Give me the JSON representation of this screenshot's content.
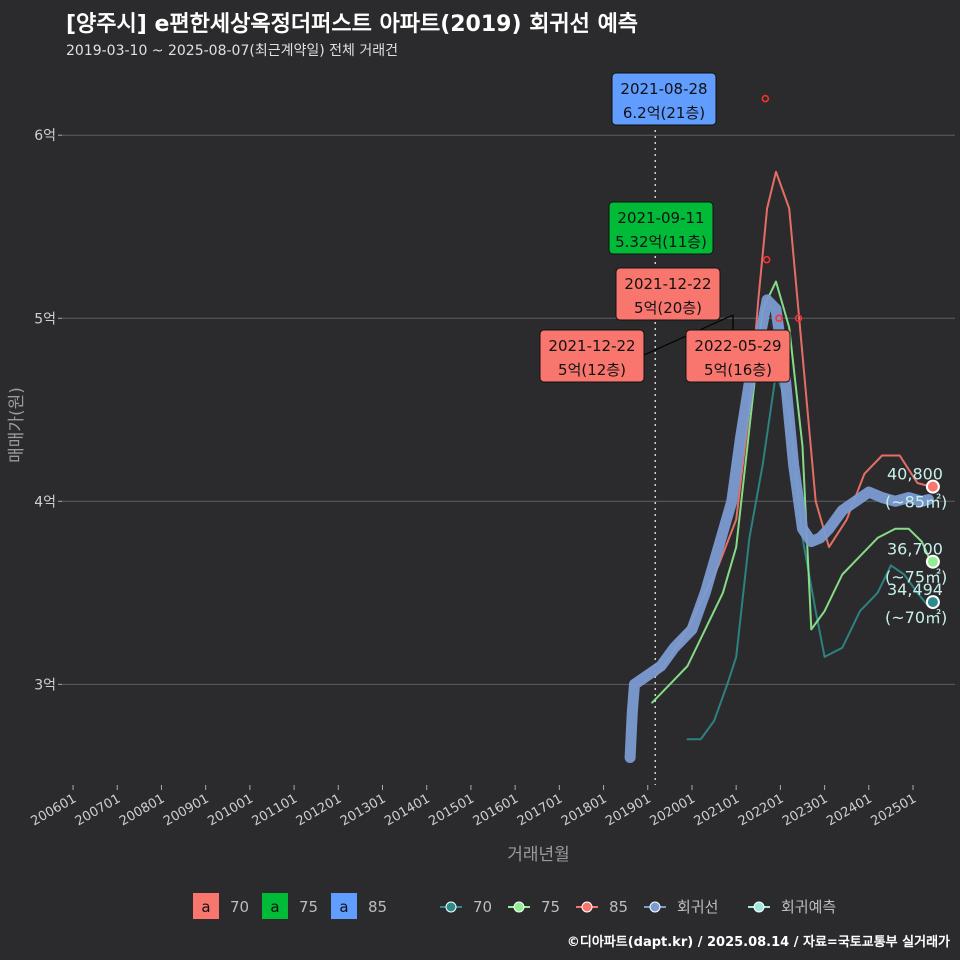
{
  "title": "[양주시] e편한세상옥정더퍼스트 아파트(2019) 회귀선 예측",
  "subtitle": "2019-03-10 ~ 2025-08-07(최근계약일) 전체 거래건",
  "footer": "©디아파트(dapt.kr) / 2025.08.14 / 자료=국토교통부 실거래가",
  "colors": {
    "c70": "#f8766d",
    "c75": "#00ba38",
    "c85": "#619cff",
    "teal": "#2e8b8b",
    "lightgreen": "#90ee90",
    "regression": "#7b9bd1",
    "forecast": "#9ee8dd"
  },
  "chart_data": {
    "type": "line",
    "xlabel": "거래년월",
    "ylabel": "매매가(원)",
    "ylim": [
      24500,
      64000
    ],
    "y_ticks": [
      {
        "value": 30000,
        "label": "3억"
      },
      {
        "value": 40000,
        "label": "4억"
      },
      {
        "value": 50000,
        "label": "5억"
      },
      {
        "value": 60000,
        "label": "6억"
      }
    ],
    "x_ticks": [
      "200601",
      "200701",
      "200801",
      "200901",
      "201001",
      "201101",
      "201201",
      "201301",
      "201401",
      "201501",
      "201601",
      "201701",
      "201801",
      "201901",
      "202001",
      "202101",
      "202201",
      "202301",
      "202401",
      "202501"
    ],
    "vline_date": 2019.17,
    "series": [
      {
        "name": "70",
        "color": "#2e8b8b",
        "x": [
          2019.9,
          2020.2,
          2020.5,
          2020.8,
          2021.0,
          2021.3,
          2021.6,
          2021.9,
          2022.2,
          2022.5,
          2022.8,
          2023.0,
          2023.4,
          2023.8,
          2024.2,
          2024.5,
          2024.8,
          2025.1,
          2025.3
        ],
        "y": [
          27000,
          27000,
          28000,
          30000,
          31500,
          38000,
          42000,
          47000,
          45000,
          38000,
          34000,
          31500,
          32000,
          34000,
          35000,
          36500,
          36000,
          35000,
          34400
        ]
      },
      {
        "name": "75",
        "color": "#90ee90",
        "x": [
          2019.1,
          2019.5,
          2019.9,
          2020.3,
          2020.7,
          2021.0,
          2021.3,
          2021.6,
          2021.9,
          2022.2,
          2022.5,
          2022.7,
          2023.0,
          2023.4,
          2023.8,
          2024.2,
          2024.6,
          2024.9,
          2025.2,
          2025.4
        ],
        "y": [
          29000,
          30000,
          31000,
          33000,
          35000,
          37500,
          44000,
          50500,
          52000,
          49500,
          43000,
          33000,
          34000,
          36000,
          37000,
          38000,
          38500,
          38500,
          37800,
          36700
        ]
      },
      {
        "name": "85",
        "color": "#f8766d",
        "x": [
          2019.2,
          2019.5,
          2019.9,
          2020.3,
          2020.6,
          2021.0,
          2021.3,
          2021.5,
          2021.7,
          2021.9,
          2022.2,
          2022.5,
          2022.8,
          2023.1,
          2023.5,
          2023.9,
          2024.3,
          2024.7,
          2025.1,
          2025.4
        ],
        "y": [
          30500,
          31500,
          33000,
          35000,
          36500,
          39000,
          45000,
          51000,
          56000,
          58000,
          56000,
          48000,
          40000,
          37500,
          39000,
          41500,
          42500,
          42500,
          41000,
          40800
        ]
      },
      {
        "name": "회귀선",
        "color": "#7b9bd1",
        "x": [
          2018.6,
          2018.65,
          2018.7,
          2019.0,
          2019.3,
          2019.6,
          2020.0,
          2020.3,
          2020.6,
          2020.9,
          2021.1,
          2021.3,
          2021.5,
          2021.7,
          2021.9,
          2022.1,
          2022.3,
          2022.5,
          2022.7,
          2022.9,
          2023.1,
          2023.4,
          2023.7,
          2024.0,
          2024.3,
          2024.6,
          2024.9,
          2025.2,
          2025.35
        ],
        "y": [
          26000,
          28500,
          30000,
          30500,
          31000,
          32000,
          33000,
          35000,
          37500,
          40000,
          43500,
          46500,
          48500,
          51000,
          50500,
          47000,
          42000,
          38500,
          37800,
          38000,
          38500,
          39500,
          40000,
          40500,
          40200,
          40000,
          40200,
          40000,
          40100
        ]
      }
    ],
    "forecast": [
      {
        "label": "40,800",
        "area": "(~85㎡)",
        "x": 2025.45,
        "y": 40800,
        "color": "#f8766d"
      },
      {
        "label": "36,700",
        "area": "(~75㎡)",
        "x": 2025.45,
        "y": 36700,
        "color": "#90ee90"
      },
      {
        "label": "34,494",
        "area": "(~70㎡)",
        "x": 2025.45,
        "y": 34494,
        "color": "#2e8b8b"
      }
    ],
    "annotations": [
      {
        "date": "2021-08-28",
        "price": "6.2억(21층)",
        "color": "#619cff",
        "x": 2021.66,
        "y": 62000
      },
      {
        "date": "2021-09-11",
        "price": "5.32억(11층)",
        "color": "#00ba38",
        "x": 2021.69,
        "y": 53200
      },
      {
        "date": "2021-12-22",
        "price": "5억(20층)",
        "color": "#f8766d",
        "x": 2021.97,
        "y": 50000
      },
      {
        "date": "2021-12-22",
        "price": "5억(12층)",
        "color": "#f8766d",
        "x": 2021.97,
        "y": 50000
      },
      {
        "date": "2022-05-29",
        "price": "5억(16층)",
        "color": "#f8766d",
        "x": 2022.41,
        "y": 50000
      }
    ],
    "legend_fill": [
      {
        "label": "70",
        "color": "#f8766d"
      },
      {
        "label": "75",
        "color": "#00ba38"
      },
      {
        "label": "85",
        "color": "#619cff"
      }
    ],
    "legend_line": [
      {
        "label": "70",
        "color": "#2e8b8b"
      },
      {
        "label": "75",
        "color": "#90ee90"
      },
      {
        "label": "85",
        "color": "#f8766d"
      },
      {
        "label": "회귀선",
        "color": "#7b9bd1"
      },
      {
        "label": "회귀예측",
        "color": "#9ee8dd"
      }
    ],
    "legend_fill_glyph": "a"
  }
}
